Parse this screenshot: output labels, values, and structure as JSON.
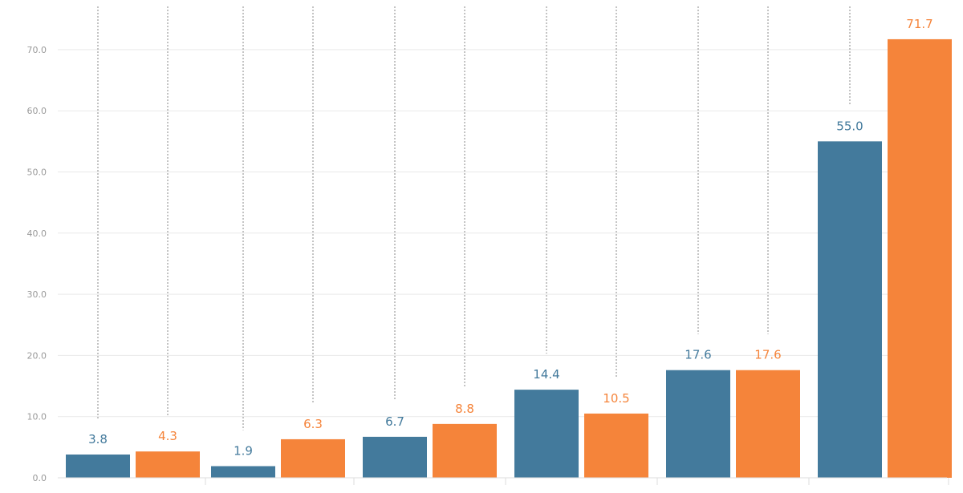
{
  "chart_data": {
    "type": "bar",
    "title": "",
    "xlabel": "",
    "ylabel": "",
    "ylim": [
      0,
      75
    ],
    "yticks": [
      "0.0",
      "10.0",
      "20.0",
      "30.0",
      "40.0",
      "50.0",
      "60.0",
      "70.0"
    ],
    "categories": [
      "",
      "",
      "",
      "",
      "",
      ""
    ],
    "grid": true,
    "legend": "none",
    "series": [
      {
        "color": "#437a9c",
        "values": [
          3.8,
          1.9,
          6.7,
          14.4,
          17.6,
          55.0
        ],
        "labels": [
          "3.8",
          "1.9",
          "6.7",
          "14.4",
          "17.6",
          "55.0"
        ],
        "dotted_lines_to": [
          72.0,
          72.0,
          72.0,
          72.0,
          72.0,
          72.0
        ]
      },
      {
        "color": "#f5843a",
        "values": [
          4.3,
          6.3,
          8.8,
          10.5,
          17.6,
          71.7
        ],
        "labels": [
          "4.3",
          "6.3",
          "8.8",
          "10.5",
          "17.6",
          "71.7"
        ],
        "dotted_lines_to": [
          72.0,
          72.0,
          72.0,
          72.0,
          72.0,
          null
        ]
      }
    ]
  }
}
